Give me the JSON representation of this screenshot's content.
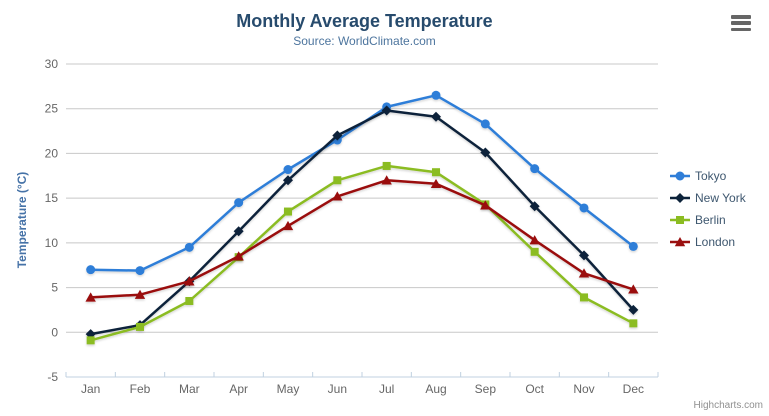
{
  "credits_label": "Highcharts.com",
  "colors": {
    "title": "#274b6d",
    "subtitle": "#4d759e",
    "axis_labels": "#666666",
    "axis_title": "#4572a7",
    "grid_line": "#c8c8c8",
    "axis_line": "#c0d0e0",
    "legend_text": "#3e576f",
    "credits": "#909090",
    "menu_icon": "#666666"
  },
  "chart_data": {
    "type": "line",
    "title": "Monthly Average Temperature",
    "subtitle": "Source: WorldClimate.com",
    "categories": [
      "Jan",
      "Feb",
      "Mar",
      "Apr",
      "May",
      "Jun",
      "Jul",
      "Aug",
      "Sep",
      "Oct",
      "Nov",
      "Dec"
    ],
    "xlabel": "",
    "ylabel": "Temperature (°C)",
    "ylim": [
      -5,
      30
    ],
    "ytick_interval": 5,
    "grid": true,
    "legend_position": "right-middle",
    "series": [
      {
        "name": "Tokyo",
        "color": "#2f7ed8",
        "marker": "circle",
        "values": [
          7.0,
          6.9,
          9.5,
          14.5,
          18.2,
          21.5,
          25.2,
          26.5,
          23.3,
          18.3,
          13.9,
          9.6
        ]
      },
      {
        "name": "New York",
        "color": "#0d233a",
        "marker": "diamond",
        "values": [
          -0.2,
          0.8,
          5.7,
          11.3,
          17.0,
          22.0,
          24.8,
          24.1,
          20.1,
          14.1,
          8.6,
          2.5
        ]
      },
      {
        "name": "Berlin",
        "color": "#8bbc21",
        "marker": "square",
        "values": [
          -0.9,
          0.6,
          3.5,
          8.4,
          13.5,
          17.0,
          18.6,
          17.9,
          14.3,
          9.0,
          3.9,
          1.0
        ]
      },
      {
        "name": "London",
        "color": "#9a0f0f",
        "marker": "triangle",
        "values": [
          3.9,
          4.2,
          5.7,
          8.5,
          11.9,
          15.2,
          17.0,
          16.6,
          14.2,
          10.3,
          6.6,
          4.8
        ]
      }
    ]
  }
}
